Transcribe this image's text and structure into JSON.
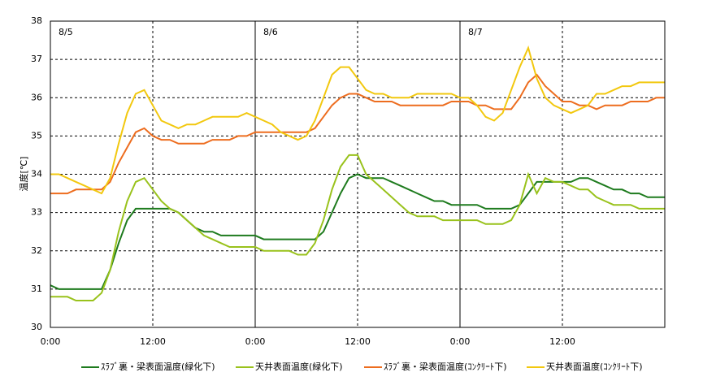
{
  "chart_data": {
    "type": "line",
    "ylabel": "温度[℃]",
    "x": [
      0,
      1,
      2,
      3,
      4,
      5,
      6,
      7,
      8,
      9,
      10,
      11,
      12,
      13,
      14,
      15,
      16,
      17,
      18,
      19,
      20,
      21,
      22,
      23,
      24,
      25,
      26,
      27,
      28,
      29,
      30,
      31,
      32,
      33,
      34,
      35,
      36,
      37,
      38,
      39,
      40,
      41,
      42,
      43,
      44,
      45,
      46,
      47,
      48,
      49,
      50,
      51,
      52,
      53,
      54,
      55,
      56,
      57,
      58,
      59,
      60,
      61,
      62,
      63,
      64,
      65,
      66,
      67,
      68,
      69,
      70,
      71,
      72
    ],
    "xlim": [
      0,
      72
    ],
    "xticks": [
      {
        "value": 0,
        "label": "0:00"
      },
      {
        "value": 12,
        "label": "12:00"
      },
      {
        "value": 24,
        "label": "0:00"
      },
      {
        "value": 36,
        "label": "12:00"
      },
      {
        "value": 48,
        "label": "0:00"
      },
      {
        "value": 60,
        "label": "12:00"
      }
    ],
    "ylim": [
      30,
      38
    ],
    "yticks": [
      30,
      31,
      32,
      33,
      34,
      35,
      36,
      37,
      38
    ],
    "grid": true,
    "annotations": [
      {
        "text": "8/5",
        "x": 0
      },
      {
        "text": "8/6",
        "x": 24
      },
      {
        "text": "8/7",
        "x": 48
      }
    ],
    "legend": "bottom",
    "series": [
      {
        "name": "ｽﾗﾌﾞ裏・梁表面温度(緑化下)",
        "color": "#1e7b1e",
        "values": [
          31.1,
          31.0,
          31.0,
          31.0,
          31.0,
          31.0,
          31.0,
          31.5,
          32.2,
          32.8,
          33.1,
          33.1,
          33.1,
          33.1,
          33.1,
          33.0,
          32.8,
          32.6,
          32.5,
          32.5,
          32.4,
          32.4,
          32.4,
          32.4,
          32.4,
          32.3,
          32.3,
          32.3,
          32.3,
          32.3,
          32.3,
          32.3,
          32.5,
          33.0,
          33.5,
          33.9,
          34.0,
          33.9,
          33.9,
          33.9,
          33.8,
          33.7,
          33.6,
          33.5,
          33.4,
          33.3,
          33.3,
          33.2,
          33.2,
          33.2,
          33.2,
          33.1,
          33.1,
          33.1,
          33.1,
          33.2,
          33.5,
          33.8,
          33.8,
          33.8,
          33.8,
          33.8,
          33.9,
          33.9,
          33.8,
          33.7,
          33.6,
          33.6,
          33.5,
          33.5,
          33.4,
          33.4,
          33.4
        ]
      },
      {
        "name": "天井表面温度(緑化下)",
        "color": "#99c21c",
        "values": [
          30.8,
          30.8,
          30.8,
          30.7,
          30.7,
          30.7,
          30.9,
          31.5,
          32.5,
          33.3,
          33.8,
          33.9,
          33.6,
          33.3,
          33.1,
          33.0,
          32.8,
          32.6,
          32.4,
          32.3,
          32.2,
          32.1,
          32.1,
          32.1,
          32.1,
          32.0,
          32.0,
          32.0,
          32.0,
          31.9,
          31.9,
          32.2,
          32.8,
          33.6,
          34.2,
          34.5,
          34.5,
          34.0,
          33.8,
          33.6,
          33.4,
          33.2,
          33.0,
          32.9,
          32.9,
          32.9,
          32.8,
          32.8,
          32.8,
          32.8,
          32.8,
          32.7,
          32.7,
          32.7,
          32.8,
          33.2,
          34.0,
          33.5,
          33.9,
          33.8,
          33.8,
          33.7,
          33.6,
          33.6,
          33.4,
          33.3,
          33.2,
          33.2,
          33.2,
          33.1,
          33.1,
          33.1,
          33.1
        ]
      },
      {
        "name": "ｽﾗﾌﾞ裏・梁表面温度(ｺﾝｸﾘｰﾄ下)",
        "color": "#ed6d1f",
        "values": [
          33.5,
          33.5,
          33.5,
          33.6,
          33.6,
          33.6,
          33.6,
          33.8,
          34.3,
          34.7,
          35.1,
          35.2,
          35.0,
          34.9,
          34.9,
          34.8,
          34.8,
          34.8,
          34.8,
          34.9,
          34.9,
          34.9,
          35.0,
          35.0,
          35.1,
          35.1,
          35.1,
          35.1,
          35.1,
          35.1,
          35.1,
          35.2,
          35.5,
          35.8,
          36.0,
          36.1,
          36.1,
          36.0,
          35.9,
          35.9,
          35.9,
          35.8,
          35.8,
          35.8,
          35.8,
          35.8,
          35.8,
          35.9,
          35.9,
          35.9,
          35.8,
          35.8,
          35.7,
          35.7,
          35.7,
          36.0,
          36.4,
          36.6,
          36.3,
          36.1,
          35.9,
          35.9,
          35.8,
          35.8,
          35.7,
          35.8,
          35.8,
          35.8,
          35.9,
          35.9,
          35.9,
          36.0,
          36.0
        ]
      },
      {
        "name": "天井表面温度(ｺﾝｸﾘｰﾄ下)",
        "color": "#f2c80f",
        "values": [
          34.0,
          34.0,
          33.9,
          33.8,
          33.7,
          33.6,
          33.5,
          33.9,
          34.8,
          35.6,
          36.1,
          36.2,
          35.8,
          35.4,
          35.3,
          35.2,
          35.3,
          35.3,
          35.4,
          35.5,
          35.5,
          35.5,
          35.5,
          35.6,
          35.5,
          35.4,
          35.3,
          35.1,
          35.0,
          34.9,
          35.0,
          35.4,
          36.0,
          36.6,
          36.8,
          36.8,
          36.5,
          36.2,
          36.1,
          36.1,
          36.0,
          36.0,
          36.0,
          36.1,
          36.1,
          36.1,
          36.1,
          36.1,
          36.0,
          36.0,
          35.8,
          35.5,
          35.4,
          35.6,
          36.2,
          36.8,
          37.3,
          36.5,
          36.0,
          35.8,
          35.7,
          35.6,
          35.7,
          35.8,
          36.1,
          36.1,
          36.2,
          36.3,
          36.3,
          36.4,
          36.4,
          36.4,
          36.4
        ]
      }
    ]
  }
}
